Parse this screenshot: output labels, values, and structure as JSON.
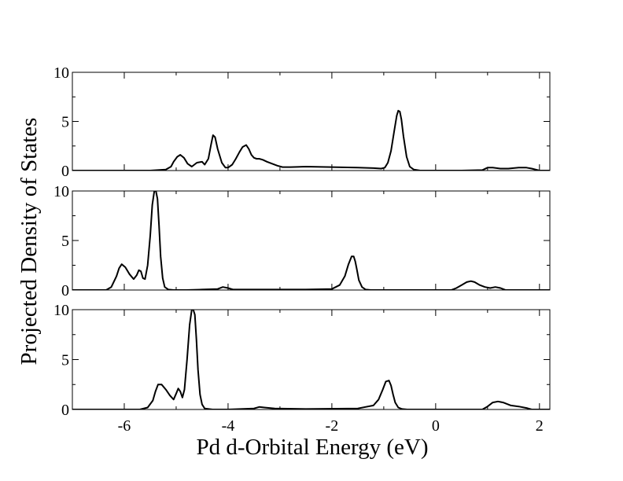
{
  "chart_data": [
    {
      "type": "line",
      "panel": "top",
      "xlim": [
        -7,
        2.2
      ],
      "ylim": [
        0,
        10
      ],
      "yticks": [
        0,
        5,
        10
      ],
      "ytick_labels": [
        "0",
        "5",
        "10"
      ],
      "series": [
        {
          "x": [
            -7.0,
            -5.5,
            -5.2,
            -5.1,
            -5.05,
            -4.98,
            -4.92,
            -4.85,
            -4.78,
            -4.7,
            -4.6,
            -4.5,
            -4.45,
            -4.38,
            -4.33,
            -4.29,
            -4.25,
            -4.2,
            -4.12,
            -4.05,
            -4.0,
            -3.92,
            -3.85,
            -3.78,
            -3.72,
            -3.65,
            -3.6,
            -3.55,
            -3.5,
            -3.45,
            -3.4,
            -3.33,
            -3.25,
            -3.15,
            -3.05,
            -2.95,
            -2.8,
            -2.5,
            -2.0,
            -1.5,
            -1.2,
            -1.05,
            -0.98,
            -0.92,
            -0.86,
            -0.8,
            -0.75,
            -0.72,
            -0.69,
            -0.66,
            -0.62,
            -0.56,
            -0.5,
            -0.42,
            -0.3,
            0.0,
            0.5,
            0.9,
            1.0,
            1.1,
            1.25,
            1.4,
            1.6,
            1.75,
            1.85,
            2.0,
            2.2
          ],
          "y": [
            0.0,
            0.0,
            0.1,
            0.4,
            0.9,
            1.4,
            1.6,
            1.3,
            0.7,
            0.4,
            0.8,
            0.9,
            0.6,
            1.2,
            2.6,
            3.6,
            3.4,
            2.2,
            0.8,
            0.3,
            0.3,
            0.6,
            1.2,
            1.9,
            2.4,
            2.6,
            2.2,
            1.6,
            1.3,
            1.2,
            1.2,
            1.1,
            0.9,
            0.7,
            0.5,
            0.35,
            0.35,
            0.4,
            0.35,
            0.3,
            0.25,
            0.2,
            0.3,
            0.8,
            2.0,
            4.0,
            5.6,
            6.1,
            6.0,
            5.2,
            3.5,
            1.4,
            0.4,
            0.1,
            0.0,
            0.0,
            0.0,
            0.05,
            0.3,
            0.3,
            0.2,
            0.2,
            0.3,
            0.3,
            0.2,
            0.0,
            0.0
          ]
        }
      ]
    },
    {
      "type": "line",
      "panel": "middle",
      "xlim": [
        -7,
        2.2
      ],
      "ylim": [
        0,
        10
      ],
      "yticks": [
        0,
        5,
        10
      ],
      "ytick_labels": [
        "0",
        "5",
        "10"
      ],
      "series": [
        {
          "x": [
            -7.0,
            -6.35,
            -6.25,
            -6.15,
            -6.1,
            -6.05,
            -5.98,
            -5.9,
            -5.82,
            -5.76,
            -5.72,
            -5.68,
            -5.64,
            -5.6,
            -5.55,
            -5.5,
            -5.46,
            -5.42,
            -5.39,
            -5.36,
            -5.33,
            -5.3,
            -5.26,
            -5.22,
            -5.15,
            -5.05,
            -4.8,
            -4.5,
            -4.2,
            -4.1,
            -4.0,
            -3.9,
            -3.5,
            -2.5,
            -2.0,
            -1.85,
            -1.75,
            -1.68,
            -1.62,
            -1.58,
            -1.55,
            -1.52,
            -1.48,
            -1.42,
            -1.35,
            -1.25,
            -1.0,
            0.3,
            0.4,
            0.5,
            0.6,
            0.68,
            0.75,
            0.85,
            0.95,
            1.05,
            1.15,
            1.25,
            1.35,
            2.2
          ],
          "y": [
            0.0,
            0.0,
            0.3,
            1.4,
            2.2,
            2.6,
            2.3,
            1.6,
            1.1,
            1.5,
            2.0,
            1.9,
            1.2,
            1.1,
            2.5,
            5.5,
            8.6,
            10.0,
            10.0,
            9.2,
            6.5,
            3.4,
            1.2,
            0.3,
            0.05,
            0.0,
            0.0,
            0.05,
            0.1,
            0.3,
            0.2,
            0.05,
            0.05,
            0.05,
            0.1,
            0.5,
            1.4,
            2.6,
            3.4,
            3.4,
            2.9,
            2.1,
            1.0,
            0.3,
            0.05,
            0.0,
            0.0,
            0.0,
            0.2,
            0.5,
            0.8,
            0.9,
            0.8,
            0.5,
            0.3,
            0.2,
            0.3,
            0.2,
            0.0,
            0.0
          ]
        }
      ]
    },
    {
      "type": "line",
      "panel": "bottom",
      "xlim": [
        -7,
        2.2
      ],
      "ylim": [
        0,
        10
      ],
      "xticks": [
        -6,
        -4,
        -2,
        0,
        2
      ],
      "xtick_labels": [
        "-6",
        "-4",
        "-2",
        "0",
        "2"
      ],
      "yticks": [
        0,
        5,
        10
      ],
      "ytick_labels": [
        "0",
        "5",
        "10"
      ],
      "series": [
        {
          "x": [
            -7.0,
            -5.7,
            -5.55,
            -5.45,
            -5.4,
            -5.35,
            -5.28,
            -5.2,
            -5.12,
            -5.05,
            -5.0,
            -4.96,
            -4.92,
            -4.88,
            -4.84,
            -4.79,
            -4.74,
            -4.7,
            -4.67,
            -4.64,
            -4.61,
            -4.58,
            -4.54,
            -4.5,
            -4.45,
            -4.3,
            -4.0,
            -3.5,
            -3.4,
            -3.3,
            -3.1,
            -2.5,
            -1.5,
            -1.2,
            -1.1,
            -1.02,
            -0.96,
            -0.9,
            -0.86,
            -0.82,
            -0.78,
            -0.72,
            -0.65,
            -0.55,
            -0.3,
            0.9,
            1.0,
            1.1,
            1.2,
            1.3,
            1.45,
            1.6,
            1.75,
            1.85,
            2.2
          ],
          "y": [
            0.0,
            0.0,
            0.2,
            0.9,
            1.8,
            2.5,
            2.5,
            2.0,
            1.4,
            1.0,
            1.6,
            2.1,
            1.8,
            1.2,
            2.0,
            5.0,
            8.5,
            10.0,
            10.0,
            9.5,
            7.0,
            4.0,
            1.5,
            0.5,
            0.1,
            0.0,
            0.0,
            0.1,
            0.25,
            0.2,
            0.1,
            0.05,
            0.1,
            0.4,
            1.0,
            2.0,
            2.8,
            2.9,
            2.4,
            1.5,
            0.7,
            0.2,
            0.05,
            0.0,
            0.0,
            0.0,
            0.3,
            0.7,
            0.8,
            0.7,
            0.4,
            0.3,
            0.15,
            0.0,
            0.0
          ]
        }
      ]
    }
  ],
  "axes": {
    "xlabel": "Pd d-Orbital Energy (eV)",
    "ylabel": "Projected Density of States"
  }
}
